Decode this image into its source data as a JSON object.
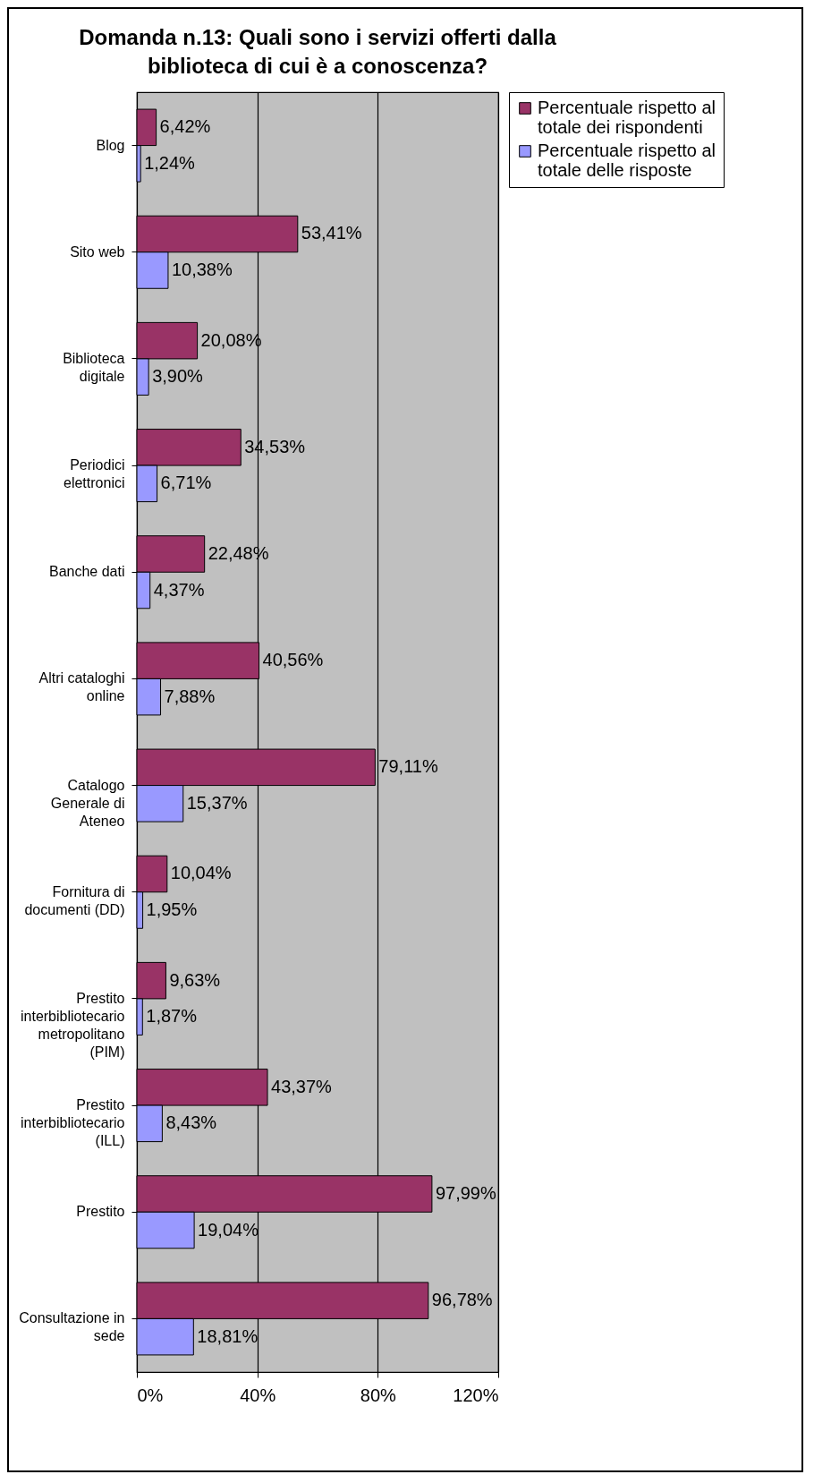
{
  "chart_data": {
    "type": "bar",
    "orientation": "horizontal",
    "title": "Domanda n.13: Quali sono i servizi offerti dalla biblioteca di cui è a conoscenza?",
    "categories": [
      "Blog",
      "Sito web",
      "Biblioteca digitale",
      "Periodici elettronici",
      "Banche dati",
      "Altri cataloghi online",
      "Catalogo Generale di Ateneo",
      "Fornitura di documenti (DD)",
      "Prestito interbibliotecario metropolitano (PIM)",
      "Prestito interbibliotecario (ILL)",
      "Prestito",
      "Consultazione in sede"
    ],
    "series": [
      {
        "name": "Percentuale rispetto al totale dei rispondenti",
        "color": "#993366",
        "values": [
          6.42,
          53.41,
          20.08,
          34.53,
          22.48,
          40.56,
          79.11,
          10.04,
          9.63,
          43.37,
          97.99,
          96.78
        ],
        "value_labels": [
          "6,42%",
          "53,41%",
          "20,08%",
          "34,53%",
          "22,48%",
          "40,56%",
          "79,11%",
          "10,04%",
          "9,63%",
          "43,37%",
          "97,99%",
          "96,78%"
        ]
      },
      {
        "name": "Percentuale rispetto al totale delle risposte",
        "color": "#9999ff",
        "values": [
          1.24,
          10.38,
          3.9,
          6.71,
          4.37,
          7.88,
          15.37,
          1.95,
          1.87,
          8.43,
          19.04,
          18.81
        ],
        "value_labels": [
          "1,24%",
          "10,38%",
          "3,90%",
          "6,71%",
          "4,37%",
          "7,88%",
          "15,37%",
          "1,95%",
          "1,87%",
          "8,43%",
          "19,04%",
          "18,81%"
        ]
      }
    ],
    "xlim": [
      0,
      120
    ],
    "xticks": [
      {
        "value": 0,
        "label": "0%"
      },
      {
        "value": 40,
        "label": "40%"
      },
      {
        "value": 80,
        "label": "80%"
      },
      {
        "value": 120,
        "label": "120%"
      }
    ],
    "grid": "x",
    "legend": "right"
  }
}
